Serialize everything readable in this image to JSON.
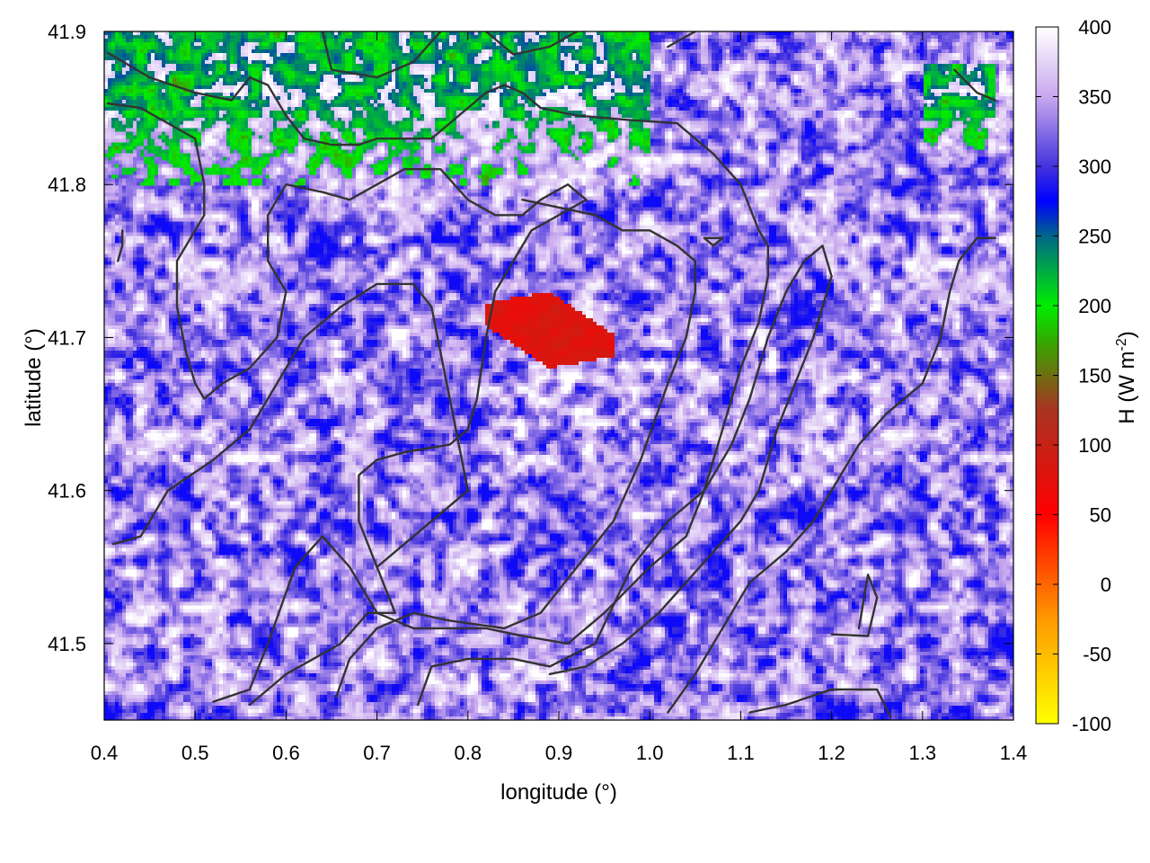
{
  "chart_data": {
    "type": "heatmap",
    "title": "",
    "xlabel": "longitude (°)",
    "ylabel": "latitude (°)",
    "colorbar_label": "H (W m-2)",
    "colorbar_label_main": "H (W m",
    "colorbar_label_exp": "-2",
    "colorbar_label_close": ")",
    "xlim": [
      0.4,
      1.4
    ],
    "ylim": [
      41.45,
      41.9
    ],
    "clim": [
      -100,
      400
    ],
    "x_ticks": [
      0.4,
      0.5,
      0.6,
      0.7,
      0.8,
      0.9,
      1.0,
      1.1,
      1.2,
      1.3,
      1.4
    ],
    "x_tick_labels": [
      "0.4",
      "0.5",
      "0.6",
      "0.7",
      "0.8",
      "0.9",
      "1.0",
      "1.1",
      "1.2",
      "1.3",
      "1.4"
    ],
    "y_ticks": [
      41.5,
      41.6,
      41.7,
      41.8,
      41.9
    ],
    "y_tick_labels": [
      "41.5",
      "41.6",
      "41.7",
      "41.8",
      "41.9"
    ],
    "colorbar_ticks": [
      400,
      350,
      300,
      250,
      200,
      150,
      100,
      50,
      0,
      -50,
      -100
    ],
    "colorbar_tick_labels": [
      "400",
      "350",
      "300",
      "250",
      "200",
      "150",
      "100",
      "50",
      "0",
      "-50",
      "-100"
    ],
    "palette": [
      {
        "value": -100,
        "color": "#ffff00"
      },
      {
        "value": -25,
        "color": "#ff9900"
      },
      {
        "value": 50,
        "color": "#ff0000"
      },
      {
        "value": 125,
        "color": "#aa3322"
      },
      {
        "value": 175,
        "color": "#33aa00"
      },
      {
        "value": 200,
        "color": "#00ee00"
      },
      {
        "value": 250,
        "color": "#006688"
      },
      {
        "value": 275,
        "color": "#0000ff"
      },
      {
        "value": 300,
        "color": "#4433dd"
      },
      {
        "value": 350,
        "color": "#c8a8ee"
      },
      {
        "value": 400,
        "color": "#ffffff"
      }
    ],
    "grid": false,
    "description_of_field": {
      "background_range": [
        280,
        400
      ],
      "low_value_patch": {
        "lon": [
          0.82,
          0.96
        ],
        "lat": [
          41.68,
          41.73
        ],
        "value": 60
      },
      "green_regions": [
        {
          "lon": [
            0.4,
            1.0
          ],
          "lat": [
            41.8,
            41.9
          ],
          "value": 200
        },
        {
          "lon": [
            1.3,
            1.38
          ],
          "lat": [
            41.82,
            41.88
          ],
          "value": 200
        }
      ]
    },
    "contour_color": "#333333",
    "contours": [
      [
        [
          0.404,
          41.886
        ],
        [
          0.45,
          41.87
        ],
        [
          0.5,
          41.86
        ],
        [
          0.54,
          41.855
        ],
        [
          0.56,
          41.87
        ],
        [
          0.58,
          41.865
        ],
        [
          0.6,
          41.845
        ],
        [
          0.62,
          41.83
        ],
        [
          0.65,
          41.826
        ],
        [
          0.68,
          41.826
        ],
        [
          0.7,
          41.83
        ],
        [
          0.72,
          41.83
        ],
        [
          0.74,
          41.83
        ],
        [
          0.76,
          41.83
        ],
        [
          0.79,
          41.845
        ],
        [
          0.82,
          41.86
        ],
        [
          0.84,
          41.865
        ],
        [
          0.86,
          41.86
        ],
        [
          0.88,
          41.85
        ],
        [
          0.92,
          41.845
        ],
        [
          0.98,
          41.842
        ],
        [
          1.03,
          41.84
        ],
        [
          1.07,
          41.82
        ],
        [
          1.1,
          41.8
        ],
        [
          1.12,
          41.77
        ],
        [
          1.13,
          41.76
        ],
        [
          1.13,
          41.74
        ],
        [
          1.12,
          41.71
        ],
        [
          1.1,
          41.68
        ],
        [
          1.08,
          41.64
        ],
        [
          1.06,
          41.6
        ],
        [
          1.04,
          41.57
        ],
        [
          1.0,
          41.55
        ],
        [
          0.95,
          41.52
        ],
        [
          0.91,
          41.5
        ],
        [
          0.86,
          41.505
        ],
        [
          0.82,
          41.51
        ],
        [
          0.78,
          41.51
        ],
        [
          0.74,
          41.51
        ],
        [
          0.7,
          41.52
        ],
        [
          0.67,
          41.55
        ],
        [
          0.64,
          41.57
        ],
        [
          0.61,
          41.55
        ],
        [
          0.58,
          41.5
        ],
        [
          0.56,
          41.47
        ],
        [
          0.52,
          41.462
        ]
      ],
      [
        [
          0.404,
          41.853
        ],
        [
          0.44,
          41.85
        ],
        [
          0.47,
          41.84
        ],
        [
          0.5,
          41.83
        ],
        [
          0.51,
          41.8
        ],
        [
          0.51,
          41.78
        ],
        [
          0.48,
          41.75
        ],
        [
          0.48,
          41.72
        ],
        [
          0.49,
          41.69
        ],
        [
          0.5,
          41.67
        ],
        [
          0.51,
          41.66
        ],
        [
          0.53,
          41.67
        ],
        [
          0.56,
          41.68
        ],
        [
          0.59,
          41.7
        ],
        [
          0.6,
          41.73
        ],
        [
          0.58,
          41.75
        ],
        [
          0.58,
          41.78
        ],
        [
          0.6,
          41.8
        ],
        [
          0.64,
          41.795
        ],
        [
          0.67,
          41.79
        ],
        [
          0.7,
          41.8
        ],
        [
          0.73,
          41.81
        ],
        [
          0.77,
          41.81
        ],
        [
          0.8,
          41.79
        ],
        [
          0.83,
          41.78
        ],
        [
          0.86,
          41.78
        ],
        [
          0.88,
          41.79
        ],
        [
          0.91,
          41.8
        ],
        [
          0.93,
          41.79
        ],
        [
          0.9,
          41.78
        ],
        [
          0.87,
          41.77
        ],
        [
          0.85,
          41.75
        ],
        [
          0.83,
          41.73
        ],
        [
          0.82,
          41.7
        ],
        [
          0.81,
          41.66
        ],
        [
          0.8,
          41.64
        ],
        [
          0.78,
          41.63
        ],
        [
          0.73,
          41.625
        ],
        [
          0.7,
          41.62
        ],
        [
          0.68,
          41.61
        ],
        [
          0.68,
          41.58
        ],
        [
          0.7,
          41.55
        ],
        [
          0.72,
          41.52
        ],
        [
          0.69,
          41.52
        ],
        [
          0.66,
          41.5
        ],
        [
          0.63,
          41.49
        ],
        [
          0.6,
          41.48
        ],
        [
          0.58,
          41.47
        ],
        [
          0.56,
          41.46
        ]
      ],
      [
        [
          0.41,
          41.565
        ],
        [
          0.44,
          41.57
        ],
        [
          0.47,
          41.6
        ],
        [
          0.52,
          41.62
        ],
        [
          0.56,
          41.64
        ],
        [
          0.59,
          41.67
        ],
        [
          0.62,
          41.7
        ],
        [
          0.66,
          41.72
        ],
        [
          0.7,
          41.735
        ],
        [
          0.74,
          41.735
        ],
        [
          0.76,
          41.72
        ],
        [
          0.77,
          41.69
        ],
        [
          0.78,
          41.66
        ],
        [
          0.79,
          41.63
        ],
        [
          0.8,
          41.6
        ],
        [
          0.78,
          41.59
        ],
        [
          0.76,
          41.58
        ],
        [
          0.74,
          41.57
        ],
        [
          0.72,
          41.56
        ],
        [
          0.7,
          41.55
        ]
      ],
      [
        [
          0.655,
          41.465
        ],
        [
          0.67,
          41.49
        ],
        [
          0.7,
          41.51
        ],
        [
          0.74,
          41.52
        ],
        [
          0.78,
          41.515
        ],
        [
          0.84,
          41.51
        ],
        [
          0.88,
          41.52
        ],
        [
          0.92,
          41.55
        ],
        [
          0.96,
          41.58
        ],
        [
          0.99,
          41.62
        ],
        [
          1.02,
          41.67
        ],
        [
          1.04,
          41.7
        ],
        [
          1.05,
          41.73
        ],
        [
          1.05,
          41.75
        ],
        [
          1.03,
          41.76
        ],
        [
          1.0,
          41.77
        ],
        [
          0.97,
          41.77
        ],
        [
          0.94,
          41.78
        ],
        [
          0.9,
          41.785
        ],
        [
          0.86,
          41.79
        ]
      ],
      [
        [
          0.745,
          41.46
        ],
        [
          0.76,
          41.485
        ],
        [
          0.8,
          41.49
        ],
        [
          0.85,
          41.49
        ],
        [
          0.89,
          41.485
        ],
        [
          0.94,
          41.5
        ],
        [
          0.98,
          41.55
        ],
        [
          1.02,
          41.58
        ],
        [
          1.06,
          41.6
        ],
        [
          1.09,
          41.63
        ],
        [
          1.11,
          41.66
        ],
        [
          1.13,
          41.7
        ],
        [
          1.15,
          41.73
        ],
        [
          1.17,
          41.75
        ],
        [
          1.19,
          41.76
        ],
        [
          1.2,
          41.74
        ],
        [
          1.18,
          41.7
        ],
        [
          1.16,
          41.67
        ],
        [
          1.14,
          41.64
        ],
        [
          1.12,
          41.6
        ],
        [
          1.1,
          41.58
        ],
        [
          1.07,
          41.56
        ],
        [
          1.04,
          41.54
        ],
        [
          1.01,
          41.52
        ],
        [
          0.97,
          41.5
        ],
        [
          0.93,
          41.485
        ],
        [
          0.89,
          41.48
        ]
      ],
      [
        [
          1.02,
          41.455
        ],
        [
          1.05,
          41.48
        ],
        [
          1.08,
          41.51
        ],
        [
          1.11,
          41.54
        ],
        [
          1.15,
          41.56
        ],
        [
          1.18,
          41.58
        ],
        [
          1.21,
          41.61
        ],
        [
          1.23,
          41.63
        ],
        [
          1.26,
          41.65
        ],
        [
          1.3,
          41.67
        ],
        [
          1.32,
          41.7
        ],
        [
          1.33,
          41.73
        ],
        [
          1.34,
          41.75
        ],
        [
          1.36,
          41.765
        ],
        [
          1.38,
          41.765
        ]
      ],
      [
        [
          1.2,
          41.506
        ],
        [
          1.24,
          41.505
        ],
        [
          1.25,
          41.53
        ],
        [
          1.24,
          41.545
        ],
        [
          1.23,
          41.51
        ]
      ],
      [
        [
          1.11,
          41.455
        ],
        [
          1.15,
          41.46
        ],
        [
          1.2,
          41.47
        ],
        [
          1.25,
          41.47
        ],
        [
          1.265,
          41.452
        ]
      ],
      [
        [
          1.06,
          41.765
        ],
        [
          1.08,
          41.765
        ],
        [
          1.07,
          41.76
        ],
        [
          1.06,
          41.765
        ]
      ],
      [
        [
          1.335,
          41.875
        ],
        [
          1.36,
          41.86
        ],
        [
          1.38,
          41.855
        ]
      ],
      [
        [
          0.64,
          41.9
        ],
        [
          0.65,
          41.875
        ],
        [
          0.7,
          41.87
        ],
        [
          0.74,
          41.88
        ],
        [
          0.77,
          41.9
        ]
      ],
      [
        [
          0.82,
          41.9
        ],
        [
          0.85,
          41.885
        ],
        [
          0.89,
          41.89
        ],
        [
          0.92,
          41.9
        ]
      ],
      [
        [
          1.02,
          41.89
        ],
        [
          1.05,
          41.9
        ]
      ],
      [
        [
          0.415,
          41.75
        ],
        [
          0.42,
          41.76
        ],
        [
          0.42,
          41.77
        ]
      ]
    ]
  }
}
